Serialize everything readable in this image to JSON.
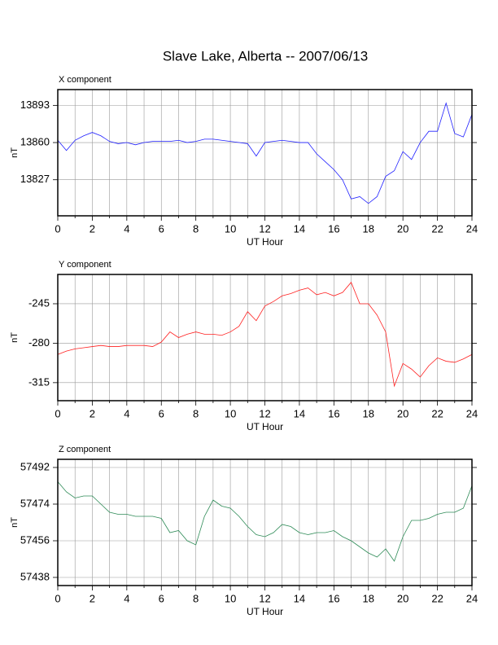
{
  "title": "Slave Lake, Alberta -- 2007/06/13",
  "chart_data": [
    {
      "type": "line",
      "subtitle": "X component",
      "xlabel": "UT Hour",
      "ylabel": "nT",
      "color": "#2020ff",
      "x": [
        0,
        0.5,
        1,
        1.5,
        2,
        2.5,
        3,
        3.5,
        4,
        4.5,
        5,
        5.5,
        6,
        6.5,
        7,
        7.5,
        8,
        8.5,
        9,
        9.5,
        10,
        10.5,
        11,
        11.5,
        12,
        12.5,
        13,
        13.5,
        14,
        14.5,
        15,
        15.5,
        16,
        16.5,
        17,
        17.5,
        18,
        18.5,
        19,
        19.5,
        20,
        20.5,
        21,
        21.5,
        22,
        22.5,
        23,
        23.5,
        24
      ],
      "values": [
        13862,
        13853,
        13862,
        13866,
        13869,
        13866,
        13861,
        13859,
        13860,
        13858,
        13860,
        13861,
        13861,
        13861,
        13862,
        13860,
        13861,
        13863,
        13863,
        13862,
        13861,
        13860,
        13859,
        13848,
        13860,
        13861,
        13862,
        13861,
        13860,
        13860,
        13850,
        13843,
        13836,
        13827,
        13810,
        13812,
        13806,
        13812,
        13830,
        13835,
        13852,
        13845,
        13860,
        13870,
        13870,
        13895,
        13868,
        13865,
        13885
      ],
      "xlim": [
        0,
        24
      ],
      "xticks": [
        0,
        2,
        4,
        6,
        8,
        10,
        12,
        14,
        16,
        18,
        20,
        22,
        24
      ],
      "xminor": [
        1,
        3,
        5,
        7,
        9,
        11,
        13,
        15,
        17,
        19,
        21,
        23
      ],
      "ylim": [
        13795,
        13907
      ],
      "yticks": [
        13827,
        13860,
        13893
      ],
      "grid": true
    },
    {
      "type": "line",
      "subtitle": "Y component",
      "xlabel": "UT Hour",
      "ylabel": "nT",
      "color": "#ff2020",
      "x": [
        0,
        0.5,
        1,
        1.5,
        2,
        2.5,
        3,
        3.5,
        4,
        4.5,
        5,
        5.5,
        6,
        6.5,
        7,
        7.5,
        8,
        8.5,
        9,
        9.5,
        10,
        10.5,
        11,
        11.5,
        12,
        12.5,
        13,
        13.5,
        14,
        14.5,
        15,
        15.5,
        16,
        16.5,
        17,
        17.5,
        18,
        18.5,
        19,
        19.5,
        20,
        20.5,
        21,
        21.5,
        22,
        22.5,
        23,
        23.5,
        24
      ],
      "values": [
        -290,
        -287,
        -285,
        -284,
        -283,
        -282,
        -283,
        -283,
        -282,
        -282,
        -282,
        -283,
        -279,
        -270,
        -275,
        -272,
        -270,
        -272,
        -272,
        -273,
        -270,
        -265,
        -252,
        -260,
        -247,
        -243,
        -238,
        -236,
        -233,
        -231,
        -237,
        -235,
        -238,
        -235,
        -226,
        -245,
        -245,
        -255,
        -270,
        -318,
        -298,
        -303,
        -310,
        -300,
        -293,
        -296,
        -297,
        -294,
        -290
      ],
      "xlim": [
        0,
        24
      ],
      "xticks": [
        0,
        2,
        4,
        6,
        8,
        10,
        12,
        14,
        16,
        18,
        20,
        22,
        24
      ],
      "xminor": [
        1,
        3,
        5,
        7,
        9,
        11,
        13,
        15,
        17,
        19,
        21,
        23
      ],
      "ylim": [
        -331,
        -219
      ],
      "yticks": [
        -315,
        -280,
        -245
      ],
      "grid": true
    },
    {
      "type": "line",
      "subtitle": "Z component",
      "xlabel": "UT Hour",
      "ylabel": "nT",
      "color": "#2e8b57",
      "x": [
        0,
        0.5,
        1,
        1.5,
        2,
        2.5,
        3,
        3.5,
        4,
        4.5,
        5,
        5.5,
        6,
        6.5,
        7,
        7.5,
        8,
        8.5,
        9,
        9.5,
        10,
        10.5,
        11,
        11.5,
        12,
        12.5,
        13,
        13.5,
        14,
        14.5,
        15,
        15.5,
        16,
        16.5,
        17,
        17.5,
        18,
        18.5,
        19,
        19.5,
        20,
        20.5,
        21,
        21.5,
        22,
        22.5,
        23,
        23.5,
        24
      ],
      "values": [
        57485,
        57480,
        57477,
        57478,
        57478,
        57474,
        57470,
        57469,
        57469,
        57468,
        57468,
        57468,
        57467,
        57460,
        57461,
        57456,
        57454,
        57468,
        57476,
        57473,
        57472,
        57468,
        57463,
        57459,
        57458,
        57460,
        57464,
        57463,
        57460,
        57459,
        57460,
        57460,
        57461,
        57458,
        57456,
        57453,
        57450,
        57448,
        57452,
        57446,
        57458,
        57466,
        57466,
        57467,
        57469,
        57470,
        57470,
        57472,
        57483
      ],
      "xlim": [
        0,
        24
      ],
      "xticks": [
        0,
        2,
        4,
        6,
        8,
        10,
        12,
        14,
        16,
        18,
        20,
        22,
        24
      ],
      "xminor": [
        1,
        3,
        5,
        7,
        9,
        11,
        13,
        15,
        17,
        19,
        21,
        23
      ],
      "ylim": [
        57434,
        57496
      ],
      "yticks": [
        57438,
        57456,
        57474,
        57492
      ],
      "grid": true
    }
  ]
}
